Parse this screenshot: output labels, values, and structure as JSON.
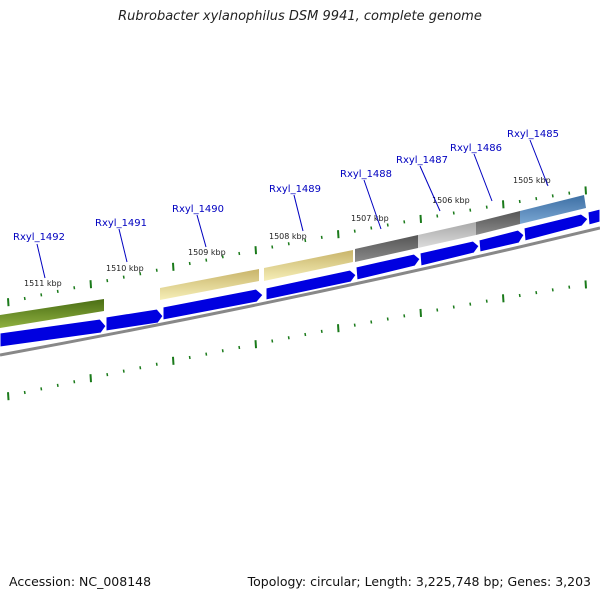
{
  "title": "Rubrobacter xylanophilus DSM 9941, complete genome",
  "footer": {
    "accession": "Accession: NC_008148",
    "summary": "Topology: circular; Length: 3,225,748 bp; Genes: 3,203"
  },
  "colors": {
    "cds_arrow": "#0000e0",
    "backbone": "#888888",
    "tick": "#1a7a1a",
    "label": "#0000c0"
  },
  "genes": [
    {
      "name": "Rxyl_1492",
      "color": "#5a8a1e"
    },
    {
      "name": "Rxyl_1491",
      "color": "#0000e0"
    },
    {
      "name": "Rxyl_1490",
      "color": "#e8e0a0"
    },
    {
      "name": "Rxyl_1489",
      "color": "#f0e8a8"
    },
    {
      "name": "Rxyl_1488",
      "color": "#666666"
    },
    {
      "name": "Rxyl_1487",
      "color": "#c0c0c0"
    },
    {
      "name": "Rxyl_1486",
      "color": "#666666"
    },
    {
      "name": "Rxyl_1485",
      "color": "#4a80b8"
    }
  ],
  "scale_labels": [
    "1511 kbp",
    "1510 kbp",
    "1509 kbp",
    "1508 kbp",
    "1507 kbp",
    "1506 kbp",
    "1505 kbp"
  ]
}
